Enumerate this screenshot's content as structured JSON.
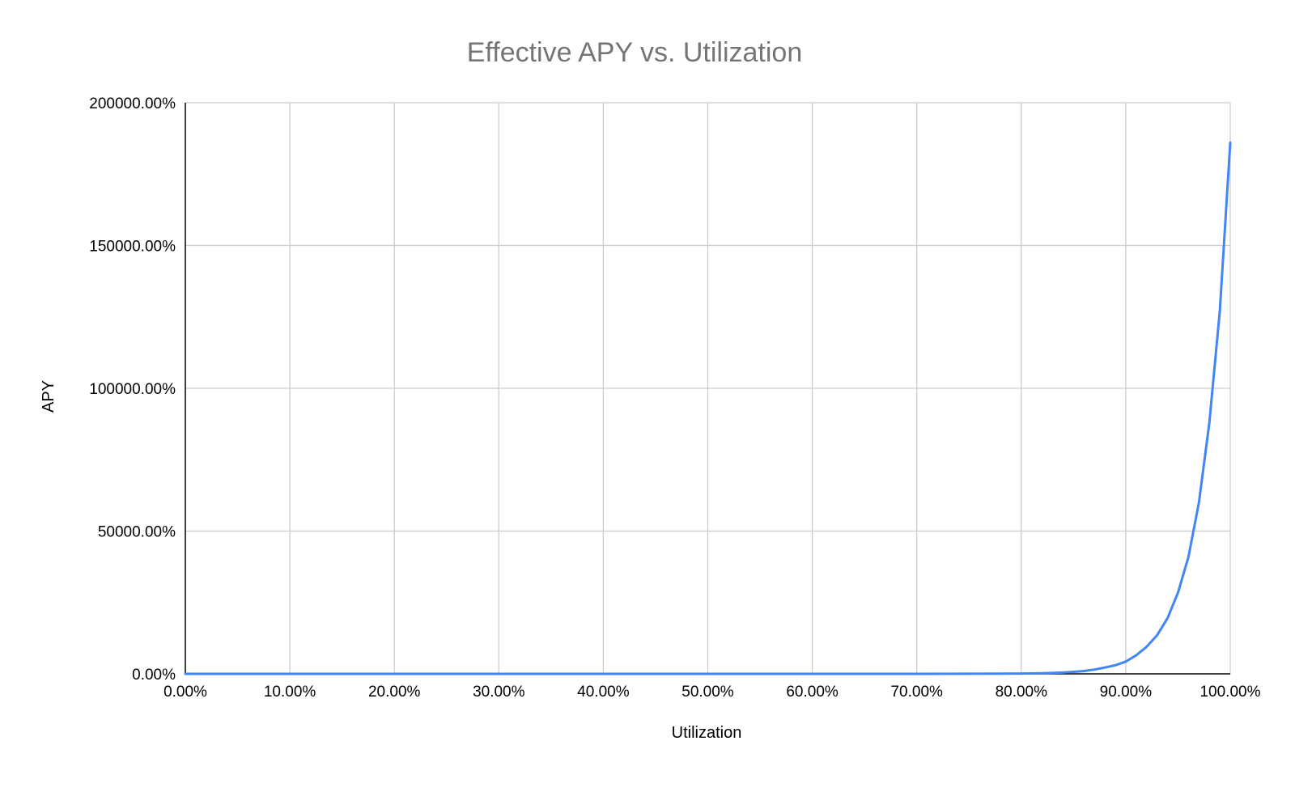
{
  "chart_data": {
    "type": "line",
    "title": "Effective APY vs. Utilization",
    "xlabel": "Utilization",
    "ylabel": "APY",
    "xlim": [
      0,
      100
    ],
    "ylim": [
      0,
      200000
    ],
    "x_unit": "%",
    "y_unit": "%",
    "x_ticks": [
      "0.00%",
      "10.00%",
      "20.00%",
      "30.00%",
      "40.00%",
      "50.00%",
      "60.00%",
      "70.00%",
      "80.00%",
      "90.00%",
      "100.00%"
    ],
    "x_tick_values": [
      0,
      10,
      20,
      30,
      40,
      50,
      60,
      70,
      80,
      90,
      100
    ],
    "y_ticks": [
      "0.00%",
      "50000.00%",
      "100000.00%",
      "150000.00%",
      "200000.00%"
    ],
    "y_tick_values": [
      0,
      50000,
      100000,
      150000,
      200000
    ],
    "grid": true,
    "legend": "none",
    "series_color": "#4285f4",
    "series": [
      {
        "x": [
          0,
          10,
          20,
          30,
          40,
          50,
          60,
          70,
          78,
          80,
          82,
          84,
          85,
          86,
          87,
          88,
          89,
          90,
          91,
          92,
          93,
          94,
          95,
          96,
          97,
          98,
          99,
          100
        ],
        "values": [
          0,
          0,
          0,
          0,
          0,
          0,
          0,
          5,
          60,
          120,
          220,
          450,
          700,
          1000,
          1500,
          2200,
          3000,
          4300,
          6500,
          9500,
          13500,
          19500,
          28500,
          41000,
          60000,
          88000,
          127000,
          186000
        ]
      }
    ]
  }
}
